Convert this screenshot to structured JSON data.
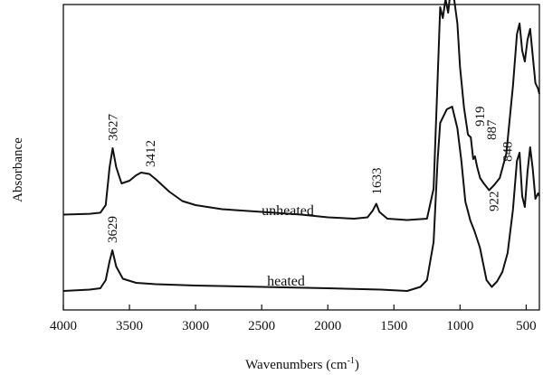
{
  "chart_data": {
    "type": "line",
    "xlabel": "Wavenumbers (cm",
    "xlabel_sup": "-1",
    "xlabel_end": ")",
    "ylabel": "Absorbance",
    "xlim": [
      4000,
      400
    ],
    "x_reversed": true,
    "xticks": [
      4000,
      3500,
      3000,
      2500,
      2000,
      1500,
      1000,
      500
    ],
    "grid": false,
    "series": [
      {
        "name": "unheated",
        "points": [
          [
            4000,
            0.155
          ],
          [
            3800,
            0.158
          ],
          [
            3720,
            0.162
          ],
          [
            3680,
            0.19
          ],
          [
            3650,
            0.33
          ],
          [
            3627,
            0.4
          ],
          [
            3600,
            0.33
          ],
          [
            3560,
            0.27
          ],
          [
            3500,
            0.28
          ],
          [
            3450,
            0.3
          ],
          [
            3412,
            0.31
          ],
          [
            3350,
            0.305
          ],
          [
            3300,
            0.285
          ],
          [
            3200,
            0.24
          ],
          [
            3100,
            0.205
          ],
          [
            3000,
            0.19
          ],
          [
            2800,
            0.175
          ],
          [
            2500,
            0.165
          ],
          [
            2200,
            0.155
          ],
          [
            2000,
            0.145
          ],
          [
            1800,
            0.14
          ],
          [
            1700,
            0.145
          ],
          [
            1660,
            0.17
          ],
          [
            1633,
            0.195
          ],
          [
            1610,
            0.165
          ],
          [
            1550,
            0.14
          ],
          [
            1400,
            0.135
          ],
          [
            1250,
            0.14
          ],
          [
            1200,
            0.25
          ],
          [
            1170,
            0.65
          ],
          [
            1150,
            0.92
          ],
          [
            1130,
            0.88
          ],
          [
            1110,
            0.95
          ],
          [
            1090,
            0.9
          ],
          [
            1070,
            0.99
          ],
          [
            1050,
            0.97
          ],
          [
            1020,
            0.86
          ],
          [
            1000,
            0.7
          ],
          [
            970,
            0.55
          ],
          [
            940,
            0.45
          ],
          [
            919,
            0.44
          ],
          [
            900,
            0.36
          ],
          [
            887,
            0.37
          ],
          [
            870,
            0.33
          ],
          [
            848,
            0.29
          ],
          [
            820,
            0.27
          ],
          [
            780,
            0.245
          ],
          [
            740,
            0.265
          ],
          [
            700,
            0.29
          ],
          [
            650,
            0.38
          ],
          [
            600,
            0.63
          ],
          [
            570,
            0.82
          ],
          [
            550,
            0.86
          ],
          [
            530,
            0.76
          ],
          [
            510,
            0.72
          ],
          [
            490,
            0.8
          ],
          [
            470,
            0.84
          ],
          [
            450,
            0.74
          ],
          [
            430,
            0.64
          ],
          [
            410,
            0.62
          ],
          [
            400,
            0.6
          ]
        ]
      },
      {
        "name": "heated",
        "points": [
          [
            4000,
            0.02
          ],
          [
            3800,
            0.025
          ],
          [
            3720,
            0.03
          ],
          [
            3680,
            0.06
          ],
          [
            3650,
            0.13
          ],
          [
            3629,
            0.17
          ],
          [
            3600,
            0.11
          ],
          [
            3550,
            0.065
          ],
          [
            3450,
            0.05
          ],
          [
            3300,
            0.045
          ],
          [
            3000,
            0.04
          ],
          [
            2500,
            0.035
          ],
          [
            2000,
            0.03
          ],
          [
            1600,
            0.025
          ],
          [
            1400,
            0.02
          ],
          [
            1300,
            0.035
          ],
          [
            1250,
            0.06
          ],
          [
            1200,
            0.2
          ],
          [
            1170,
            0.5
          ],
          [
            1150,
            0.64
          ],
          [
            1100,
            0.69
          ],
          [
            1060,
            0.7
          ],
          [
            1020,
            0.62
          ],
          [
            990,
            0.5
          ],
          [
            960,
            0.35
          ],
          [
            922,
            0.28
          ],
          [
            890,
            0.24
          ],
          [
            850,
            0.18
          ],
          [
            800,
            0.06
          ],
          [
            760,
            0.035
          ],
          [
            720,
            0.055
          ],
          [
            680,
            0.09
          ],
          [
            640,
            0.16
          ],
          [
            600,
            0.32
          ],
          [
            570,
            0.5
          ],
          [
            550,
            0.53
          ],
          [
            530,
            0.37
          ],
          [
            510,
            0.33
          ],
          [
            490,
            0.46
          ],
          [
            470,
            0.55
          ],
          [
            450,
            0.47
          ],
          [
            430,
            0.36
          ],
          [
            410,
            0.38
          ],
          [
            400,
            0.37
          ]
        ]
      }
    ],
    "annotations": [
      {
        "text": "3627",
        "x": 3627,
        "series": "unheated"
      },
      {
        "text": "3412",
        "x": 3412,
        "series": "unheated"
      },
      {
        "text": "1633",
        "x": 1633,
        "series": "unheated"
      },
      {
        "text": "919",
        "x": 919,
        "series": "unheated"
      },
      {
        "text": "887",
        "x": 887,
        "series": "unheated"
      },
      {
        "text": "848",
        "x": 848,
        "series": "unheated"
      },
      {
        "text": "3629",
        "x": 3629,
        "series": "heated"
      },
      {
        "text": "922",
        "x": 922,
        "series": "heated"
      }
    ]
  }
}
